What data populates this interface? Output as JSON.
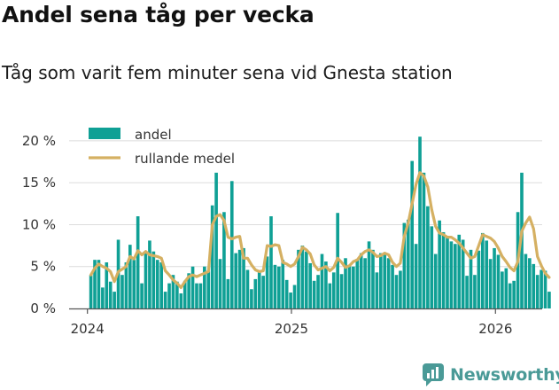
{
  "title": "Andel sena tåg per vecka",
  "subtitle": "Tåg som varit fem minuter sena vid Gnesta station",
  "brand": "Newsworthy",
  "colors": {
    "bar": "#0fa095",
    "line": "#d5b062",
    "grid": "#dcdcdc",
    "brand": "#4a9a97"
  },
  "chart_data": {
    "type": "bar",
    "title": "Andel sena tåg per vecka",
    "subtitle": "Tåg som varit fem minuter sena vid Gnesta station",
    "xlabel": "",
    "ylabel": "",
    "ylim": [
      0,
      0.22
    ],
    "yticks": [
      0,
      0.05,
      0.1,
      0.15,
      0.2
    ],
    "ytick_labels": [
      "0 %",
      "5 %",
      "10 %",
      "15 %",
      "20 %"
    ],
    "xticks": [
      2024,
      2025,
      2026
    ],
    "xtick_labels": [
      "2024",
      "2025",
      "2026"
    ],
    "xlim": [
      2024.017,
      2026.205
    ],
    "x_start": 2024.017,
    "x_step": 0.0192,
    "legend": [
      "andel",
      "rullande medel"
    ],
    "series": [
      {
        "name": "andel",
        "type": "bar",
        "values": [
          0.04,
          0.058,
          0.058,
          0.025,
          0.055,
          0.032,
          0.02,
          0.082,
          0.04,
          0.055,
          0.076,
          0.058,
          0.11,
          0.03,
          0.066,
          0.081,
          0.068,
          0.058,
          0.055,
          0.02,
          0.03,
          0.04,
          0.032,
          0.018,
          0.033,
          0.042,
          0.05,
          0.03,
          0.03,
          0.05,
          0.044,
          0.123,
          0.162,
          0.059,
          0.115,
          0.035,
          0.152,
          0.066,
          0.07,
          0.072,
          0.046,
          0.023,
          0.035,
          0.044,
          0.039,
          0.062,
          0.11,
          0.052,
          0.05,
          0.058,
          0.034,
          0.019,
          0.028,
          0.07,
          0.075,
          0.068,
          0.054,
          0.033,
          0.04,
          0.065,
          0.056,
          0.03,
          0.043,
          0.114,
          0.041,
          0.06,
          0.052,
          0.05,
          0.059,
          0.066,
          0.06,
          0.08,
          0.07,
          0.043,
          0.066,
          0.066,
          0.06,
          0.052,
          0.04,
          0.045,
          0.102,
          0.106,
          0.176,
          0.077,
          0.205,
          0.162,
          0.122,
          0.098,
          0.065,
          0.105,
          0.091,
          0.086,
          0.08,
          0.077,
          0.088,
          0.082,
          0.039,
          0.07,
          0.04,
          0.069,
          0.09,
          0.081,
          0.059,
          0.072,
          0.064,
          0.044,
          0.048,
          0.03,
          0.033,
          0.115,
          0.162,
          0.065,
          0.06,
          0.053,
          0.04,
          0.046,
          0.045,
          0.02
        ]
      },
      {
        "name": "rullande medel",
        "type": "line",
        "values": [
          0.04,
          0.048,
          0.053,
          0.05,
          0.048,
          0.044,
          0.032,
          0.044,
          0.047,
          0.05,
          0.062,
          0.059,
          0.069,
          0.064,
          0.068,
          0.064,
          0.063,
          0.062,
          0.06,
          0.045,
          0.04,
          0.034,
          0.03,
          0.025,
          0.032,
          0.038,
          0.04,
          0.038,
          0.04,
          0.042,
          0.044,
          0.1,
          0.11,
          0.112,
          0.105,
          0.085,
          0.083,
          0.085,
          0.086,
          0.06,
          0.06,
          0.052,
          0.046,
          0.044,
          0.045,
          0.075,
          0.074,
          0.076,
          0.075,
          0.055,
          0.053,
          0.05,
          0.053,
          0.062,
          0.073,
          0.07,
          0.065,
          0.052,
          0.046,
          0.048,
          0.05,
          0.045,
          0.049,
          0.06,
          0.055,
          0.049,
          0.051,
          0.056,
          0.058,
          0.064,
          0.068,
          0.07,
          0.067,
          0.062,
          0.063,
          0.066,
          0.064,
          0.055,
          0.05,
          0.054,
          0.086,
          0.102,
          0.125,
          0.148,
          0.162,
          0.158,
          0.145,
          0.118,
          0.098,
          0.09,
          0.088,
          0.085,
          0.085,
          0.082,
          0.078,
          0.072,
          0.066,
          0.06,
          0.062,
          0.075,
          0.088,
          0.086,
          0.084,
          0.08,
          0.072,
          0.062,
          0.056,
          0.049,
          0.045,
          0.056,
          0.092,
          0.102,
          0.109,
          0.095,
          0.062,
          0.051,
          0.042,
          0.037
        ]
      }
    ]
  }
}
